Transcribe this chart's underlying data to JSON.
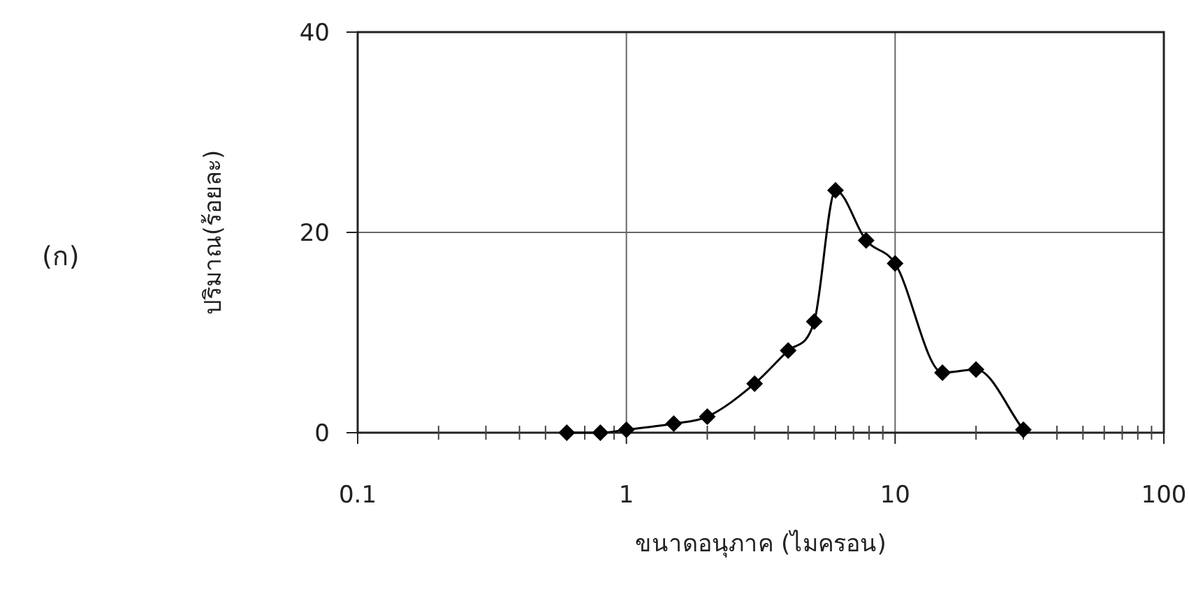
{
  "chart_data": {
    "type": "line",
    "xlabel": "ขนาดอนุภาค (ไมครอน)",
    "ylabel": "ปริมาณ(ร้อยละ)",
    "annotations": [
      "(ก)"
    ],
    "x": [
      0.6,
      0.8,
      1,
      1.5,
      2,
      3,
      4,
      5,
      6,
      7.8,
      10,
      15,
      20,
      30
    ],
    "values": [
      0,
      0,
      0.3,
      0.9,
      1.6,
      4.9,
      8.2,
      11.1,
      24.2,
      19.2,
      16.9,
      6.0,
      6.3,
      0.3
    ],
    "color": "#000000",
    "marker": "diamond",
    "log": "x",
    "grid": true,
    "xlim": [
      0.1,
      100
    ],
    "ylim": [
      0,
      40
    ],
    "xticks": [
      0.1,
      1,
      10,
      100
    ],
    "yticks": [
      0,
      20,
      40
    ]
  }
}
